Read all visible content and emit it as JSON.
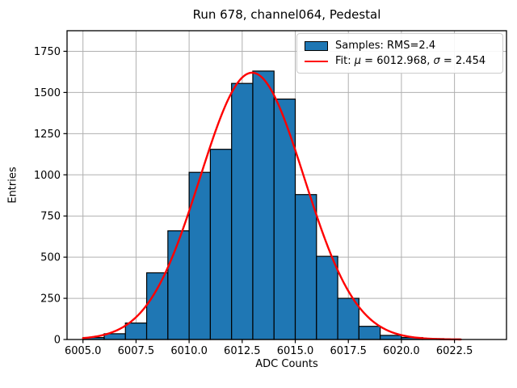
{
  "figure": {
    "title": "Run 678, channel064, Pedestal",
    "xlabel": "ADC Counts",
    "ylabel": "Entries"
  },
  "legend": {
    "samples": {
      "label": "Samples: RMS=2.4",
      "swatch_color": "#1f77b4"
    },
    "fit": {
      "prefix": "Fit: ",
      "mu_sym": "μ",
      "mu_val": " = 6012.968, ",
      "sigma_sym": "σ",
      "sigma_val": " = 2.454",
      "line_color": "#ff0000"
    }
  },
  "chart_data": {
    "type": "bar",
    "subtype": "histogram",
    "title": "Run 678, channel064, Pedestal",
    "xlabel": "ADC Counts",
    "ylabel": "Entries",
    "bin_edges": [
      6005,
      6006,
      6007,
      6008,
      6009,
      6010,
      6011,
      6012,
      6013,
      6014,
      6015,
      6016,
      6017,
      6018,
      6019,
      6020,
      6021,
      6022
    ],
    "counts": [
      12,
      35,
      100,
      405,
      660,
      1015,
      1155,
      1555,
      1630,
      1460,
      880,
      505,
      250,
      80,
      25,
      12,
      5
    ],
    "fit_curve": {
      "type": "gaussian",
      "mu": 6012.968,
      "sigma": 2.454,
      "amplitude": 1620,
      "x_range": [
        6005.0,
        6022.8
      ]
    },
    "xlim": [
      6004.25,
      6024.95
    ],
    "ylim": [
      0,
      1875
    ],
    "x_tick_values": [
      6005.0,
      6007.5,
      6010.0,
      6012.5,
      6015.0,
      6017.5,
      6020.0,
      6022.5
    ],
    "x_tick_labels": [
      "6005.0",
      "6007.5",
      "6010.0",
      "6012.5",
      "6015.0",
      "6017.5",
      "6020.0",
      "6022.5"
    ],
    "y_tick_values": [
      0,
      250,
      500,
      750,
      1000,
      1250,
      1500,
      1750
    ],
    "y_tick_labels": [
      "0",
      "250",
      "500",
      "750",
      "1000",
      "1250",
      "1500",
      "1750"
    ],
    "grid": true,
    "legend_position": "upper right",
    "colors": {
      "bar_fill": "#1f77b4",
      "bar_edge": "#000000",
      "fit_line": "#ff0000",
      "grid": "#b0b0b0",
      "frame": "#000000"
    }
  }
}
